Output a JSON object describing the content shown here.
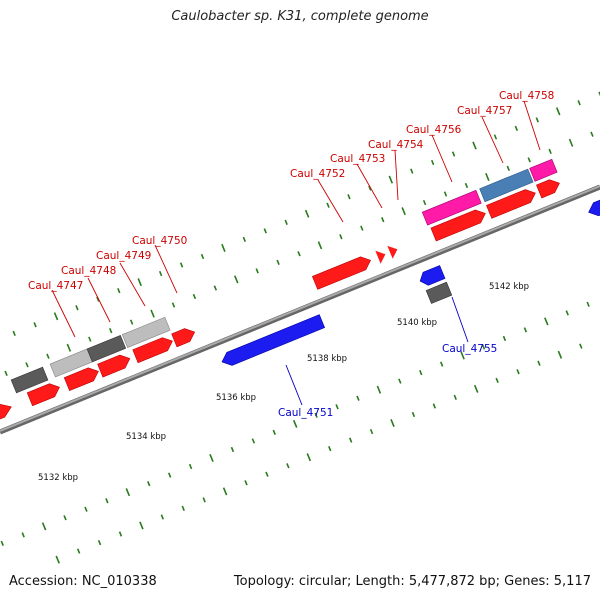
{
  "title": "Caulobacter sp. K31, complete genome",
  "accession": "Accession: NC_010338",
  "topology": "Topology: circular; Length: 5,477,872 bp; Genes: 5,117",
  "colors": {
    "backbone": "#888888",
    "tick": "#2a7a1e",
    "red_gene": "#ff1a1a",
    "blue_gene": "#1c1cf0",
    "pink_gene": "#ff1aa8",
    "steel_gene": "#4a7fb5",
    "dark_gray_gene": "#5a5a5a",
    "light_gray_gene": "#bdbdbd",
    "label_red": "#cc0000",
    "label_blue": "#0000cc"
  },
  "scale_labels": [
    "5132 kbp",
    "5134 kbp",
    "5136 kbp",
    "5138 kbp",
    "5140 kbp",
    "5142 kbp"
  ],
  "gene_labels": {
    "top": [
      "Caul_4747",
      "Caul_4748",
      "Caul_4749",
      "Caul_4750",
      "Caul_4752",
      "Caul_4753",
      "Caul_4754",
      "Caul_4756",
      "Caul_4757",
      "Caul_4758"
    ],
    "bottom": [
      "Caul_4751",
      "Caul_4755"
    ]
  }
}
